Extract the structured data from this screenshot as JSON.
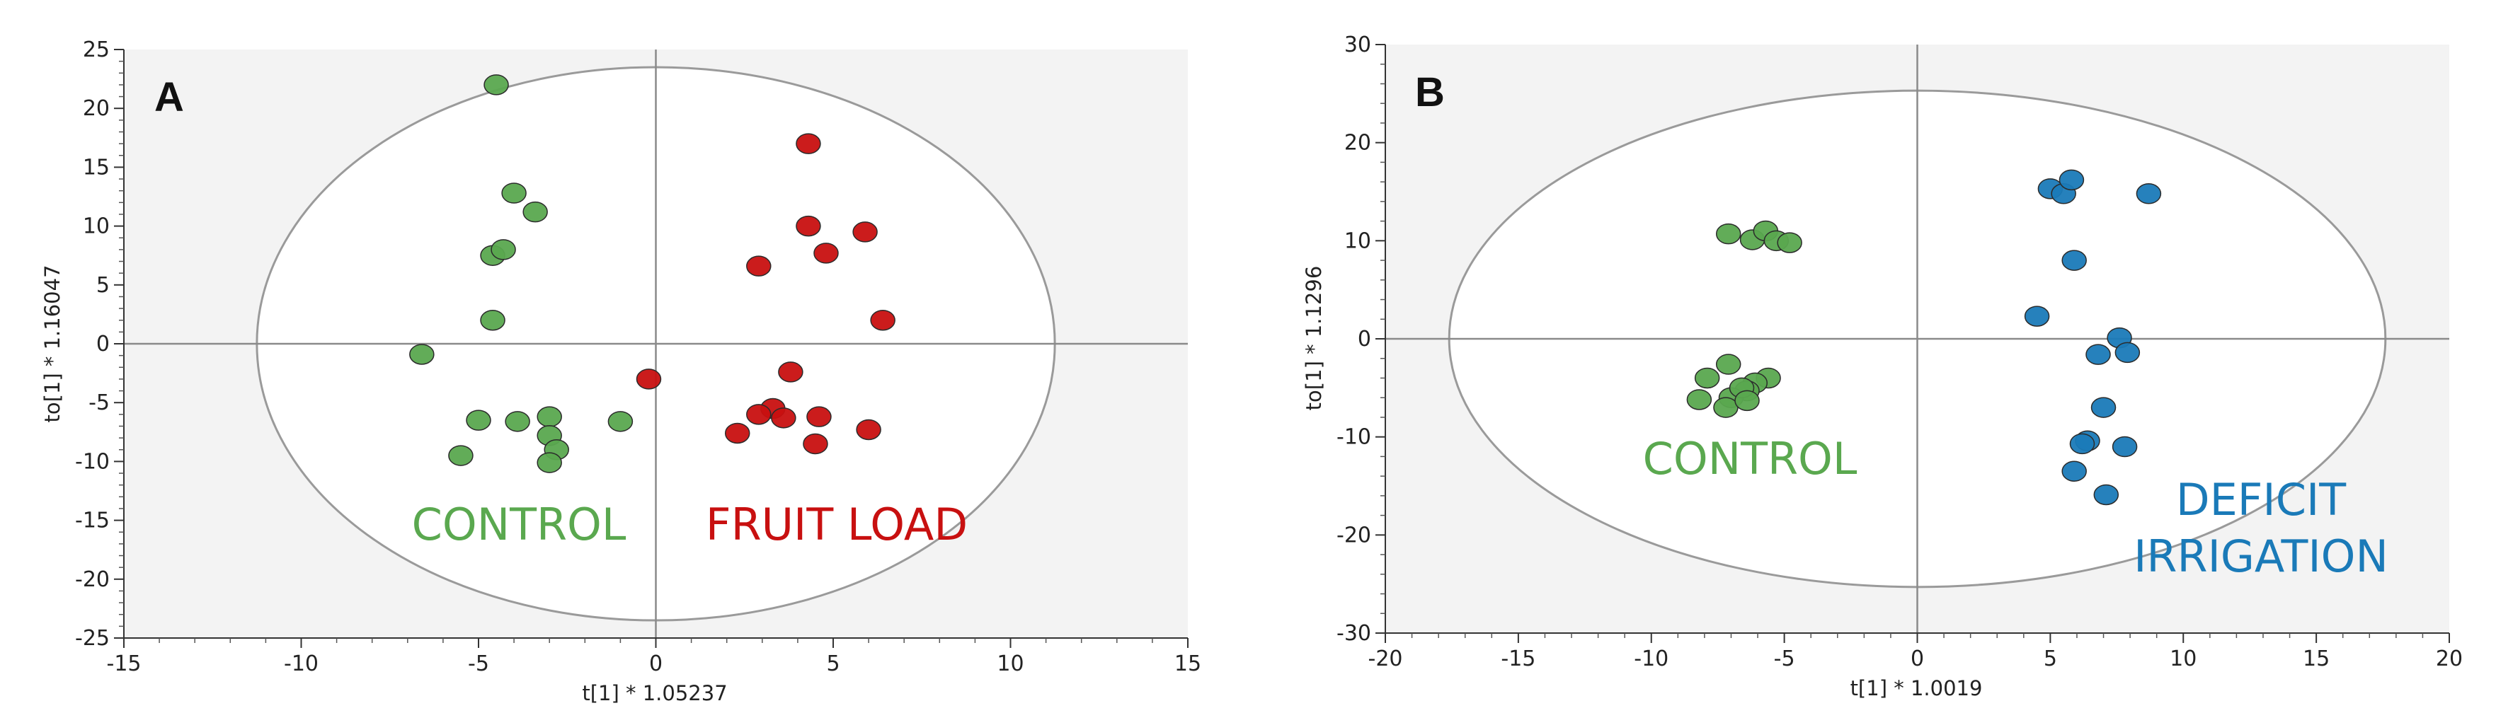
{
  "chart_data": [
    {
      "type": "scatter",
      "panel_label": "A",
      "xlabel": "t[1] * 1.05237",
      "ylabel": "to[1] * 1.16047",
      "xlim": [
        -15,
        15
      ],
      "ylim": [
        -25,
        25
      ],
      "xticks": [
        -15,
        -10,
        -5,
        0,
        5,
        10,
        15
      ],
      "yticks": [
        -25,
        -20,
        -15,
        -10,
        -5,
        0,
        5,
        10,
        15,
        20,
        25
      ],
      "ellipse": {
        "rx": 11.25,
        "ry": 23.5
      },
      "groups": [
        {
          "label": "CONTROL",
          "color": "#5aa84f"
        },
        {
          "label": "FRUIT LOAD",
          "color": "#c81010"
        }
      ],
      "series": [
        {
          "color": "#5aa84f",
          "x": [
            -4.5,
            -4.0,
            -3.4,
            -4.6,
            -4.3,
            -4.6,
            -6.6,
            -5.0,
            -3.9,
            -3.0,
            -3.0,
            -2.8,
            -1.0,
            -5.5,
            -3.0
          ],
          "y": [
            22,
            12.8,
            11.2,
            7.5,
            8.0,
            2.0,
            -0.9,
            -6.5,
            -6.6,
            -6.2,
            -7.8,
            -9.0,
            -6.6,
            -9.5,
            -10.1
          ]
        },
        {
          "color": "#c81010",
          "x": [
            4.3,
            4.3,
            5.9,
            4.8,
            2.9,
            6.4,
            -0.2,
            3.8,
            3.3,
            2.9,
            3.6,
            4.6,
            6.0,
            2.3,
            4.5
          ],
          "y": [
            17,
            10,
            9.5,
            7.7,
            6.6,
            2.0,
            -3.0,
            -2.4,
            -5.5,
            -6.0,
            -6.3,
            -6.2,
            -7.3,
            -7.6,
            -8.5
          ]
        }
      ]
    },
    {
      "type": "scatter",
      "panel_label": "B",
      "xlabel": "t[1] * 1.0019",
      "ylabel": "to[1] * 1.1296",
      "xlim": [
        -20,
        20
      ],
      "ylim": [
        -30,
        30
      ],
      "xticks": [
        -20,
        -15,
        -10,
        -5,
        0,
        5,
        10,
        15,
        20
      ],
      "yticks": [
        -30,
        -20,
        -10,
        0,
        10,
        20,
        30
      ],
      "ellipse": {
        "rx": 17.6,
        "ry": 25.3
      },
      "groups": [
        {
          "label": "CONTROL",
          "color": "#5aa84f"
        },
        {
          "label": "DEFICIT",
          "label2": "IRRIGATION",
          "color": "#1a7ab8"
        }
      ],
      "series": [
        {
          "color": "#5aa84f",
          "x": [
            -7.1,
            -6.2,
            -5.7,
            -5.3,
            -4.8,
            -7.1,
            -7.9,
            -5.6,
            -6.1,
            -6.4,
            -7.0,
            -6.6,
            -8.2,
            -7.2,
            -6.4
          ],
          "y": [
            10.7,
            10.1,
            11.0,
            10.0,
            9.8,
            -2.6,
            -4.0,
            -4.0,
            -4.5,
            -5.3,
            -6.0,
            -5.0,
            -6.2,
            -7.0,
            -6.3
          ]
        },
        {
          "color": "#1a7ab8",
          "x": [
            5.0,
            5.5,
            5.8,
            8.7,
            5.9,
            4.5,
            7.6,
            6.8,
            7.9,
            7.0,
            6.4,
            6.2,
            7.8,
            5.9,
            7.1
          ],
          "y": [
            15.3,
            14.8,
            16.2,
            14.8,
            8.0,
            2.3,
            0.1,
            -1.6,
            -1.4,
            -7.0,
            -10.4,
            -10.7,
            -11.0,
            -13.5,
            -15.9
          ]
        }
      ]
    }
  ]
}
